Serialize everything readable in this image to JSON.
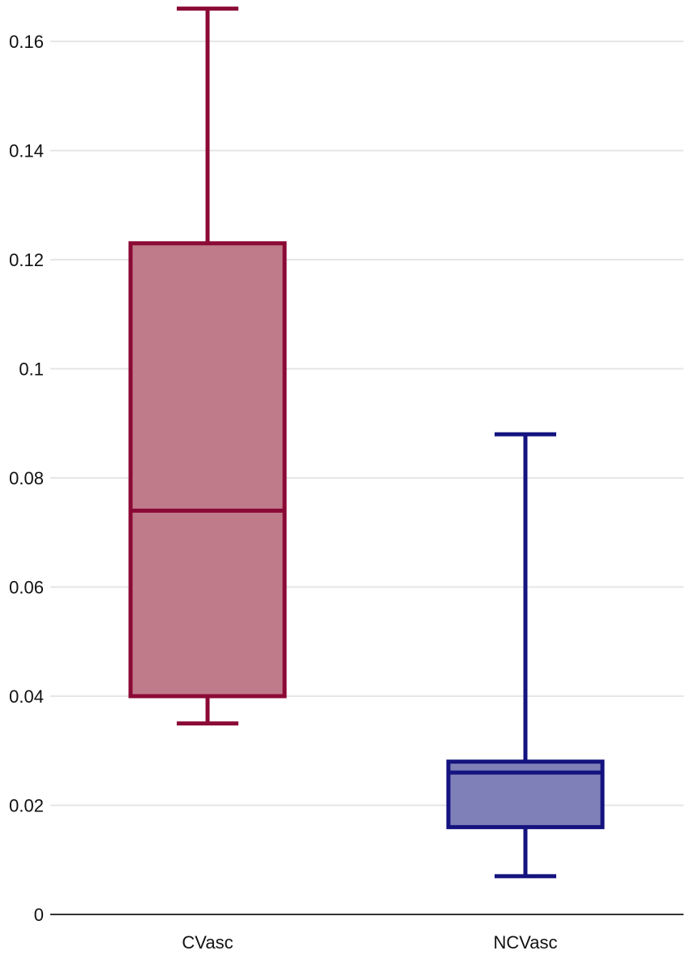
{
  "chart_data": {
    "type": "box",
    "title": "",
    "xlabel": "",
    "ylabel": "",
    "ylim": [
      0,
      0.17
    ],
    "yticks": [
      {
        "value": 0,
        "label": "0"
      },
      {
        "value": 0.02,
        "label": "0.02"
      },
      {
        "value": 0.04,
        "label": "0.04"
      },
      {
        "value": 0.06,
        "label": "0.06"
      },
      {
        "value": 0.08,
        "label": "0.08"
      },
      {
        "value": 0.1,
        "label": "0.1"
      },
      {
        "value": 0.12,
        "label": "0.12"
      },
      {
        "value": 0.14,
        "label": "0.14"
      },
      {
        "value": 0.16,
        "label": "0.16"
      }
    ],
    "grid": true,
    "categories": [
      "CVasc",
      "NCVasc"
    ],
    "boxes": [
      {
        "category": "CVasc",
        "min": 0.035,
        "q1": 0.04,
        "median": 0.074,
        "q3": 0.123,
        "max": 0.166,
        "stroke": "#8b0a35",
        "fill": "#c07b8b"
      },
      {
        "category": "NCVasc",
        "min": 0.007,
        "q1": 0.016,
        "median": 0.026,
        "q3": 0.028,
        "max": 0.088,
        "stroke": "#14137f",
        "fill": "#7f80b8"
      }
    ]
  }
}
